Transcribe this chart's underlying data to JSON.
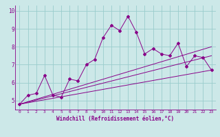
{
  "xlabel": "Windchill (Refroidissement éolien,°C)",
  "bg_color": "#cce8e8",
  "line_color": "#880088",
  "grid_color": "#99cccc",
  "xlim": [
    -0.5,
    23.5
  ],
  "ylim": [
    4.5,
    10.3
  ],
  "xticks": [
    0,
    1,
    2,
    3,
    4,
    5,
    6,
    7,
    8,
    9,
    10,
    11,
    12,
    13,
    14,
    15,
    16,
    17,
    18,
    19,
    20,
    21,
    22,
    23
  ],
  "yticks": [
    5,
    6,
    7,
    8,
    9,
    10
  ],
  "series1_x": [
    0,
    1,
    2,
    3,
    4,
    5,
    6,
    7,
    8,
    9,
    10,
    11,
    12,
    13,
    14,
    15,
    16,
    17,
    18,
    19,
    20,
    21,
    22,
    23
  ],
  "series1_y": [
    4.8,
    5.3,
    5.4,
    6.4,
    5.3,
    5.2,
    6.2,
    6.1,
    7.0,
    7.3,
    8.5,
    9.2,
    8.9,
    9.7,
    8.8,
    7.6,
    7.9,
    7.6,
    7.5,
    8.2,
    6.9,
    7.5,
    7.4,
    6.7
  ],
  "series2_x": [
    0,
    23
  ],
  "series2_y": [
    4.8,
    6.7
  ],
  "series3_x": [
    0,
    23
  ],
  "series3_y": [
    4.8,
    7.5
  ],
  "series4_x": [
    0,
    23
  ],
  "series4_y": [
    4.8,
    8.0
  ]
}
